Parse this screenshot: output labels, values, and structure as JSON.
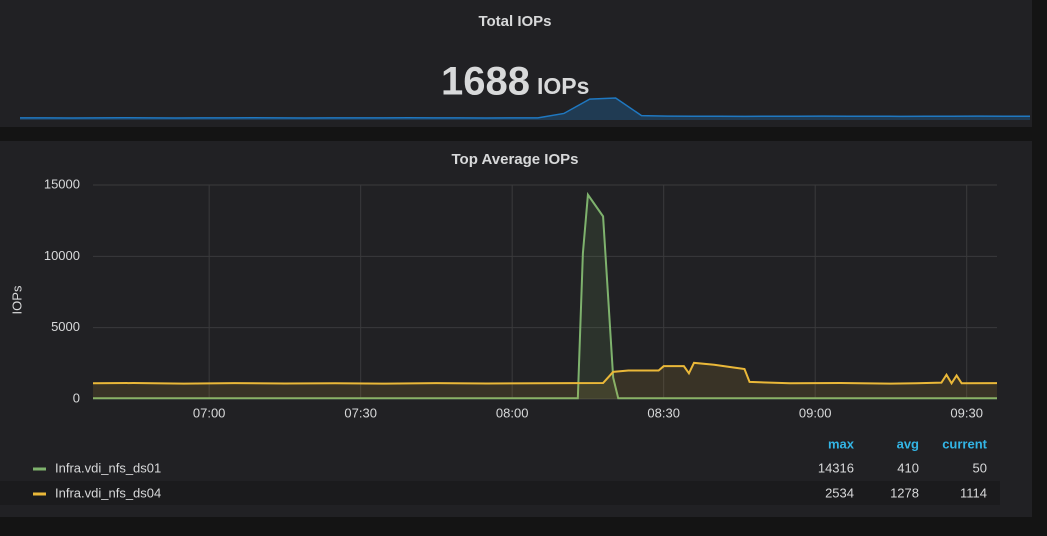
{
  "stat_panel": {
    "title": "Total IOPs",
    "value": 1688,
    "unit": "IOPs",
    "sparkline": [
      1100,
      1100,
      1090,
      1100,
      1110,
      1100,
      1090,
      1100,
      1100,
      1110,
      1100,
      1090,
      1100,
      1100,
      1100,
      1110,
      1100,
      1100,
      1090,
      1100,
      1100,
      1500,
      2800,
      2900,
      1300,
      1260,
      1250,
      1250,
      1240,
      1250,
      1250,
      1260,
      1250,
      1250,
      1240,
      1250,
      1250,
      1260,
      1250,
      1250
    ]
  },
  "chart_data": {
    "type": "line",
    "title": "Top Average IOPs",
    "y_label": "IOPs",
    "xlim": [
      397,
      576
    ],
    "xticks": [
      {
        "value": 420,
        "label": "07:00"
      },
      {
        "value": 450,
        "label": "07:30"
      },
      {
        "value": 480,
        "label": "08:00"
      },
      {
        "value": 510,
        "label": "08:30"
      },
      {
        "value": 540,
        "label": "09:00"
      },
      {
        "value": 570,
        "label": "09:30"
      }
    ],
    "ylim": [
      0,
      15000
    ],
    "yticks": [
      0,
      5000,
      10000,
      15000
    ],
    "grid": true,
    "legend_columns": [
      "max",
      "avg",
      "current"
    ],
    "series": [
      {
        "name": "Infra.vdi_nfs_ds01",
        "color": "#7eb26d",
        "stats": [
          14316,
          410,
          50
        ],
        "x": [
          397,
          493,
          494,
          495,
          498,
          500,
          501,
          576
        ],
        "values": [
          50,
          50,
          10200,
          14316,
          12800,
          1500,
          50,
          50
        ]
      },
      {
        "name": "Infra.vdi_nfs_ds04",
        "color": "#eab839",
        "stats": [
          2534,
          1278,
          1114
        ],
        "x": [
          397,
          405,
          415,
          425,
          435,
          445,
          455,
          465,
          475,
          485,
          498,
          500,
          503,
          509,
          510,
          514,
          515,
          516,
          520,
          524,
          526,
          527,
          535,
          545,
          555,
          560,
          565,
          566,
          567,
          568,
          569,
          576
        ],
        "values": [
          1100,
          1120,
          1080,
          1110,
          1090,
          1100,
          1080,
          1110,
          1090,
          1100,
          1120,
          1900,
          2000,
          2000,
          2300,
          2300,
          1800,
          2534,
          2400,
          2200,
          2100,
          1200,
          1100,
          1120,
          1080,
          1100,
          1150,
          1700,
          1100,
          1650,
          1100,
          1114
        ]
      }
    ]
  }
}
